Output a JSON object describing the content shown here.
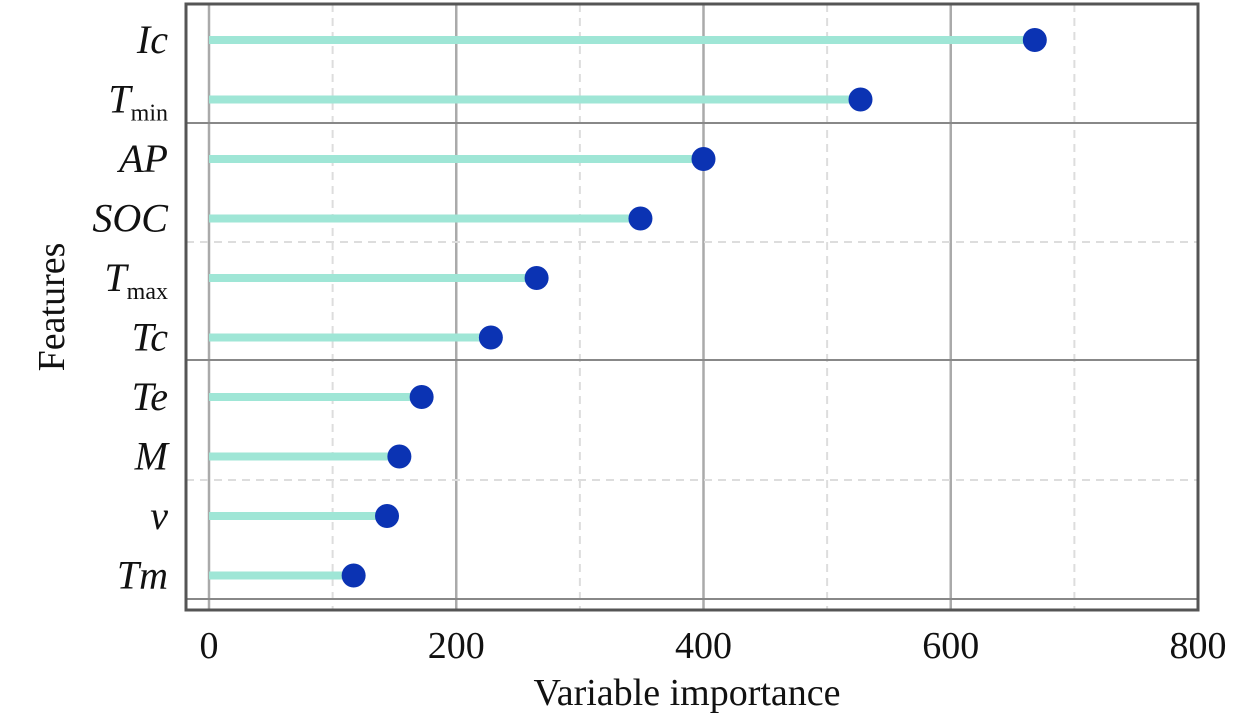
{
  "chart_data": {
    "type": "lollipop",
    "orientation": "horizontal",
    "xlabel": "Variable importance",
    "ylabel": "Features",
    "xlim": [
      0,
      800
    ],
    "xticks": [
      "0",
      "200",
      "400",
      "600",
      "800"
    ],
    "grid": true,
    "colors": {
      "stem": "#9fe6d6",
      "dot": "#0b33b3"
    },
    "categories": [
      {
        "main": "Ic",
        "sub": ""
      },
      {
        "main": "T",
        "sub": "min"
      },
      {
        "main": "AP",
        "sub": ""
      },
      {
        "main": "SOC",
        "sub": ""
      },
      {
        "main": "T",
        "sub": "max"
      },
      {
        "main": "Tc",
        "sub": ""
      },
      {
        "main": "Te",
        "sub": ""
      },
      {
        "main": "M",
        "sub": ""
      },
      {
        "main": "v",
        "sub": ""
      },
      {
        "main": "Tm",
        "sub": ""
      }
    ],
    "values": [
      668,
      527,
      400,
      349,
      265,
      228,
      172,
      154,
      144,
      117
    ]
  }
}
